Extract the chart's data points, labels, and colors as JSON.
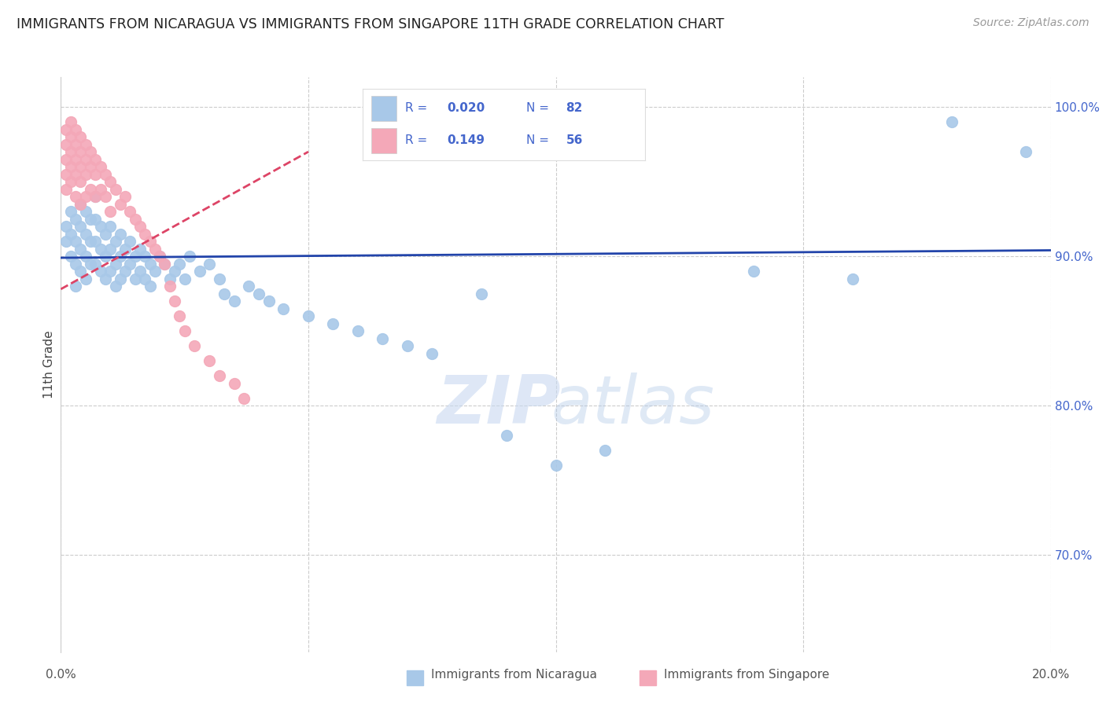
{
  "title": "IMMIGRANTS FROM NICARAGUA VS IMMIGRANTS FROM SINGAPORE 11TH GRADE CORRELATION CHART",
  "source": "Source: ZipAtlas.com",
  "ylabel": "11th Grade",
  "xlim": [
    0.0,
    0.2
  ],
  "ylim": [
    0.635,
    1.02
  ],
  "yticks": [
    0.7,
    0.8,
    0.9,
    1.0
  ],
  "ytick_labels": [
    "70.0%",
    "80.0%",
    "90.0%",
    "100.0%"
  ],
  "xticks": [
    0.0,
    0.05,
    0.1,
    0.15,
    0.2
  ],
  "color_nicaragua": "#a8c8e8",
  "color_singapore": "#f4a8b8",
  "color_trend_nicaragua": "#2244aa",
  "color_trend_singapore": "#dd4466",
  "color_right_axis": "#4466cc",
  "watermark_zip": "ZIP",
  "watermark_atlas": "atlas",
  "nicaragua_x": [
    0.001,
    0.001,
    0.002,
    0.002,
    0.002,
    0.003,
    0.003,
    0.003,
    0.003,
    0.004,
    0.004,
    0.004,
    0.004,
    0.005,
    0.005,
    0.005,
    0.005,
    0.006,
    0.006,
    0.006,
    0.007,
    0.007,
    0.007,
    0.007,
    0.008,
    0.008,
    0.008,
    0.009,
    0.009,
    0.009,
    0.01,
    0.01,
    0.01,
    0.011,
    0.011,
    0.011,
    0.012,
    0.012,
    0.012,
    0.013,
    0.013,
    0.014,
    0.014,
    0.015,
    0.015,
    0.016,
    0.016,
    0.017,
    0.017,
    0.018,
    0.018,
    0.019,
    0.02,
    0.021,
    0.022,
    0.023,
    0.024,
    0.025,
    0.026,
    0.028,
    0.03,
    0.032,
    0.033,
    0.035,
    0.038,
    0.04,
    0.042,
    0.045,
    0.05,
    0.055,
    0.06,
    0.065,
    0.07,
    0.075,
    0.085,
    0.09,
    0.1,
    0.11,
    0.14,
    0.16,
    0.18,
    0.195
  ],
  "nicaragua_y": [
    0.92,
    0.91,
    0.93,
    0.915,
    0.9,
    0.925,
    0.91,
    0.895,
    0.88,
    0.935,
    0.92,
    0.905,
    0.89,
    0.93,
    0.915,
    0.9,
    0.885,
    0.925,
    0.91,
    0.895,
    0.94,
    0.925,
    0.91,
    0.895,
    0.92,
    0.905,
    0.89,
    0.915,
    0.9,
    0.885,
    0.92,
    0.905,
    0.89,
    0.91,
    0.895,
    0.88,
    0.915,
    0.9,
    0.885,
    0.905,
    0.89,
    0.91,
    0.895,
    0.9,
    0.885,
    0.905,
    0.89,
    0.9,
    0.885,
    0.895,
    0.88,
    0.89,
    0.9,
    0.895,
    0.885,
    0.89,
    0.895,
    0.885,
    0.9,
    0.89,
    0.895,
    0.885,
    0.875,
    0.87,
    0.88,
    0.875,
    0.87,
    0.865,
    0.86,
    0.855,
    0.85,
    0.845,
    0.84,
    0.835,
    0.875,
    0.78,
    0.76,
    0.77,
    0.89,
    0.885,
    0.99,
    0.97
  ],
  "singapore_x": [
    0.001,
    0.001,
    0.001,
    0.001,
    0.001,
    0.002,
    0.002,
    0.002,
    0.002,
    0.002,
    0.003,
    0.003,
    0.003,
    0.003,
    0.003,
    0.004,
    0.004,
    0.004,
    0.004,
    0.004,
    0.005,
    0.005,
    0.005,
    0.005,
    0.006,
    0.006,
    0.006,
    0.007,
    0.007,
    0.007,
    0.008,
    0.008,
    0.009,
    0.009,
    0.01,
    0.01,
    0.011,
    0.012,
    0.013,
    0.014,
    0.015,
    0.016,
    0.017,
    0.018,
    0.019,
    0.02,
    0.021,
    0.022,
    0.023,
    0.024,
    0.025,
    0.027,
    0.03,
    0.032,
    0.035,
    0.037
  ],
  "singapore_y": [
    0.985,
    0.975,
    0.965,
    0.955,
    0.945,
    0.99,
    0.98,
    0.97,
    0.96,
    0.95,
    0.985,
    0.975,
    0.965,
    0.955,
    0.94,
    0.98,
    0.97,
    0.96,
    0.95,
    0.935,
    0.975,
    0.965,
    0.955,
    0.94,
    0.97,
    0.96,
    0.945,
    0.965,
    0.955,
    0.94,
    0.96,
    0.945,
    0.955,
    0.94,
    0.95,
    0.93,
    0.945,
    0.935,
    0.94,
    0.93,
    0.925,
    0.92,
    0.915,
    0.91,
    0.905,
    0.9,
    0.895,
    0.88,
    0.87,
    0.86,
    0.85,
    0.84,
    0.83,
    0.82,
    0.815,
    0.805
  ],
  "nic_trend_x": [
    0.0,
    0.2
  ],
  "nic_trend_y": [
    0.899,
    0.904
  ],
  "sing_trend_x": [
    0.0,
    0.05
  ],
  "sing_trend_y": [
    0.878,
    0.97
  ]
}
